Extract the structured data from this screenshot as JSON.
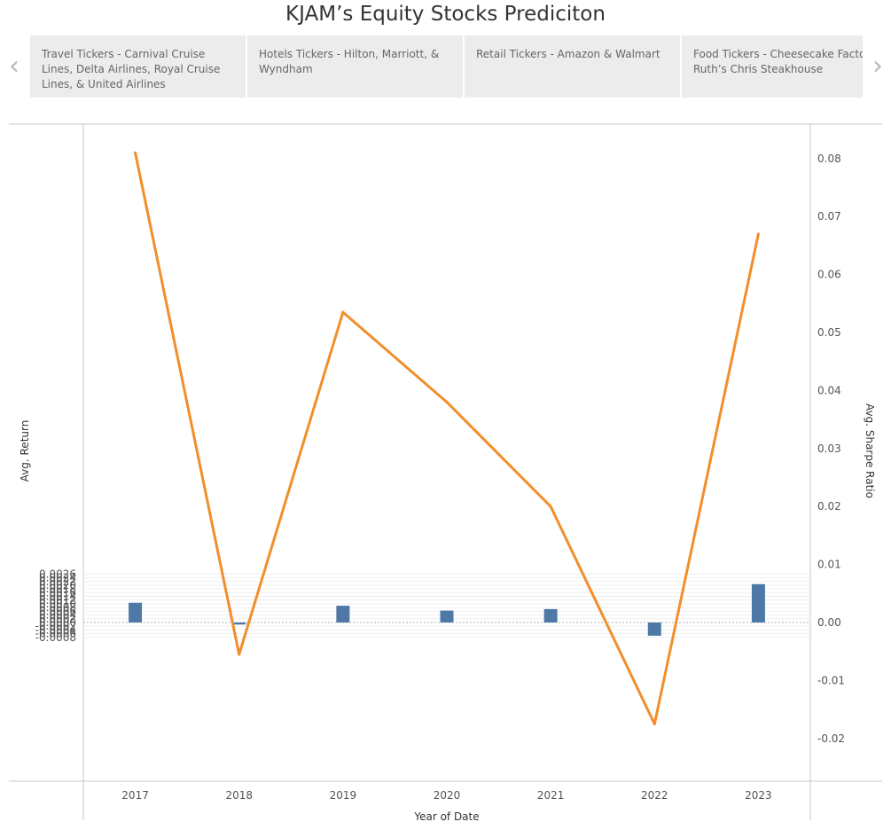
{
  "title": "KJAM’s Equity Stocks Prediciton",
  "tabs": [
    {
      "label": "Travel Tickers - Carnival Cruise Lines, Delta Airlines, Royal Cruise Lines, & United Airlines"
    },
    {
      "label": "Hotels Tickers - Hilton, Marriott, & Wyndham"
    },
    {
      "label": "Retail Tickers - Amazon & Walmart"
    },
    {
      "label": "Food Tickers - Cheesecake Factory Ruth’s Chris Steakhouse"
    }
  ],
  "nav": {
    "prev": "‹",
    "next": "›",
    "prev_icon": "chevron-left-icon",
    "next_icon": "chevron-right-icon"
  },
  "chart_data": {
    "type": "bar",
    "categories": [
      "2017",
      "2018",
      "2019",
      "2020",
      "2021",
      "2022",
      "2023"
    ],
    "xlabel": "Year of Date",
    "series": [
      {
        "name": "Avg. Return",
        "type": "bar",
        "axis": "left",
        "color": "#4e79a7",
        "values": [
          0.00106,
          -0.00011,
          0.0009,
          0.00064,
          0.00072,
          -0.00071,
          0.00206
        ]
      },
      {
        "name": "Avg. Sharpe Ratio",
        "type": "line",
        "axis": "right",
        "color": "#f28e2b",
        "values": [
          0.081,
          -0.0055,
          0.0535,
          0.038,
          0.02,
          -0.0175,
          0.067
        ]
      }
    ],
    "y_left": {
      "label": "Avg. Return",
      "range": [
        -0.0008,
        0.0026
      ],
      "ticks": [
        "0.0026",
        "0.0024",
        "0.0022",
        "0.0020",
        "0.0018",
        "0.0016",
        "0.0014",
        "0.0012",
        "0.0010",
        "0.0008",
        "0.0006",
        "0.0004",
        "0.0002",
        "0.0000",
        "-0.0002",
        "-0.0004",
        "-0.0006",
        "-0.0008"
      ]
    },
    "y_right": {
      "label": "Avg. Sharpe Ratio",
      "ticks": [
        "0.08",
        "0.07",
        "0.06",
        "0.05",
        "0.04",
        "0.03",
        "0.02",
        "0.01",
        "0.00",
        "-0.01",
        "-0.02"
      ]
    },
    "grid": true
  }
}
